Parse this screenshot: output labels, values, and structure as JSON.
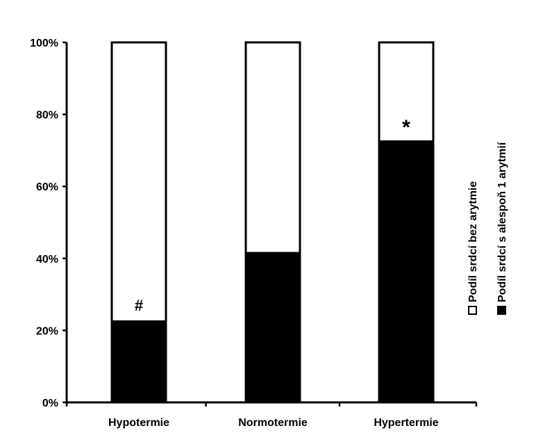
{
  "chart_data": {
    "type": "bar",
    "stacked": true,
    "percent": true,
    "categories": [
      "Hypotermie",
      "Normotermie",
      "Hypertermie"
    ],
    "series": [
      {
        "name": "Podíl srdcí s alespoň 1 arytmií",
        "color": "#000000",
        "values": [
          22.5,
          41.5,
          72.5
        ]
      },
      {
        "name": "Podíl srdcí bez arytmie",
        "color": "#ffffff",
        "values": [
          77.5,
          58.5,
          27.5
        ]
      }
    ],
    "ylim": [
      0,
      100
    ],
    "yticks": [
      0,
      20,
      40,
      60,
      80,
      100
    ],
    "ytick_labels": [
      "0%",
      "20%",
      "40%",
      "60%",
      "80%",
      "100%"
    ],
    "title": "",
    "xlabel": "",
    "ylabel": "",
    "grid": false,
    "legend_position": "right, rotated vertical",
    "legend": [
      {
        "label": "Podíl srdcí bez arytmie",
        "swatch": "open-square"
      },
      {
        "label": "Podíl srdcí s alespoň 1 arytmií",
        "swatch": "filled-square"
      }
    ],
    "annotations": [
      {
        "category": "Hypotermie",
        "text": "#"
      },
      {
        "category": "Hypertermie",
        "text": "*"
      }
    ]
  }
}
